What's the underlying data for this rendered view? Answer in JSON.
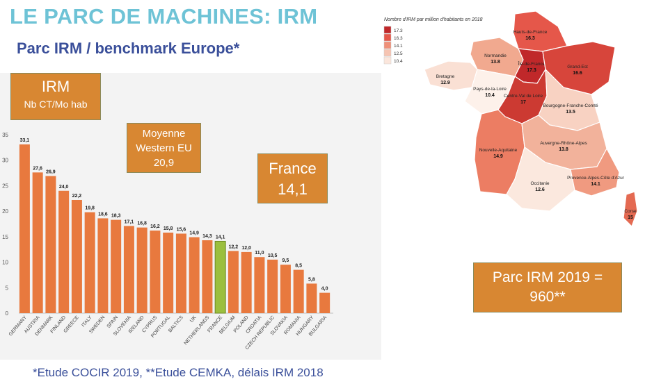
{
  "header": {
    "title": "LE PARC DE MACHINES: IRM",
    "subtitle": "Parc IRM / benchmark Europe*"
  },
  "boxes": {
    "irm_title": "IRM",
    "irm_unit": "Nb CT/Mo hab",
    "moyenne_line1": "Moyenne",
    "moyenne_line2": "Western EU",
    "moyenne_value": "20,9",
    "france_label": "France",
    "france_value": "14,1",
    "parc_line1": "Parc IRM 2019 =",
    "parc_line2": "960**"
  },
  "footnote": "*Etude COCIR 2019, **Etude CEMKA, délais IRM 2018",
  "colors": {
    "bar": "#e8793e",
    "bar_highlight": "#9bbf3e",
    "box": "#d88732",
    "title": "#6ec3d6",
    "subtitle": "#3a4f9a"
  },
  "chart_data": [
    {
      "type": "bar",
      "categories": [
        "GERMANY",
        "AUSTRIA",
        "DENMARK",
        "FINLAND",
        "GREECE",
        "ITALY",
        "SWEDEN",
        "SPAIN",
        "SLOVENIA",
        "IRELAND",
        "CYPRUS",
        "PORTUGAL",
        "BALTICS",
        "UK",
        "NETHERLANDS",
        "FRANCE",
        "BELGIUM",
        "POLAND",
        "CROATIA",
        "CZECH REPUBLIC",
        "SLOVAKIA",
        "ROMANIA",
        "HUNGARY",
        "BULGARIA"
      ],
      "values": [
        33.1,
        27.6,
        26.9,
        24.0,
        22.2,
        19.8,
        18.6,
        18.3,
        17.1,
        16.8,
        16.2,
        15.8,
        15.6,
        14.9,
        14.3,
        14.1,
        12.2,
        12.0,
        11.0,
        10.5,
        9.5,
        8.5,
        5.8,
        4.0
      ],
      "value_labels": [
        "33,1",
        "27,6",
        "26,9",
        "24,0",
        "22,2",
        "19,8",
        "18,6",
        "18,3",
        "17,1",
        "16,8",
        "16,2",
        "15,8",
        "15,6",
        "14,9",
        "14,3",
        "14,1",
        "12,2",
        "12,0",
        "11,0",
        "10,5",
        "9,5",
        "8,5",
        "5,8",
        "4,0"
      ],
      "highlight": "FRANCE",
      "ylim": [
        0,
        35
      ],
      "yticks": [
        0,
        5,
        10,
        15,
        20,
        25,
        30,
        35
      ],
      "grid": false
    },
    {
      "type": "choropleth",
      "title": "Nombre d'IRM par million d'habitants en 2018",
      "legend": [
        "17.3",
        "16.3",
        "14.1",
        "12.5",
        "10.4"
      ],
      "legend_colors": [
        "#c0282a",
        "#e5574a",
        "#ef9079",
        "#f6c4b2",
        "#fbe6dc"
      ],
      "regions": [
        {
          "name": "Hauts-de-France",
          "value": "16.3",
          "color": "#e5574a"
        },
        {
          "name": "Normandie",
          "value": "13.8",
          "color": "#f1a98f"
        },
        {
          "name": "Île-de-France",
          "value": "17.3",
          "color": "#c0282a"
        },
        {
          "name": "Grand-Est",
          "value": "16.6",
          "color": "#d7453b"
        },
        {
          "name": "Bretagne",
          "value": "12.9",
          "color": "#fae0d4"
        },
        {
          "name": "Pays-de-la-Loire",
          "value": "10.4",
          "color": "#fdf1ea"
        },
        {
          "name": "Centre-Val de Loire",
          "value": "17",
          "color": "#cc3a32"
        },
        {
          "name": "Bourgogne-Franche-Comté",
          "value": "13.5",
          "color": "#f8d2c2"
        },
        {
          "name": "Nouvelle-Aquitaine",
          "value": "14.9",
          "color": "#ec7d63"
        },
        {
          "name": "Auvergne-Rhône-Alpes",
          "value": "13.8",
          "color": "#f2b29b"
        },
        {
          "name": "Occitanie",
          "value": "12.6",
          "color": "#fbe8de"
        },
        {
          "name": "Provence-Alpes-Côte d'Azur",
          "value": "14.1",
          "color": "#f09a80"
        },
        {
          "name": "Corse",
          "value": "15",
          "color": "#e46a52"
        }
      ]
    }
  ]
}
